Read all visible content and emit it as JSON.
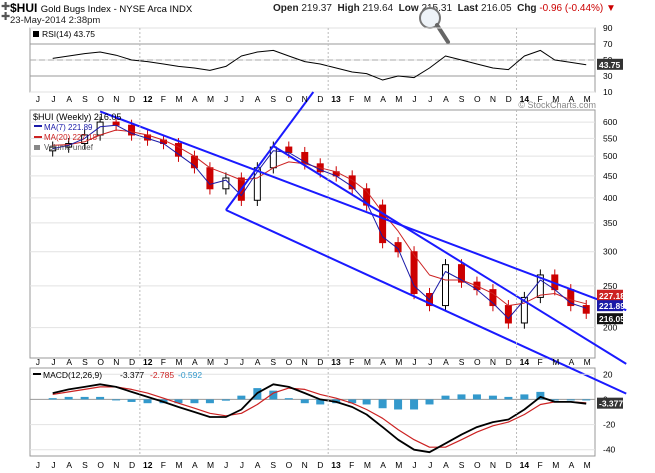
{
  "header": {
    "symbol": "$HUI",
    "name": "Gold Bugs Index - NYSE Arca INDX",
    "date": "23-May-2014 2:38pm",
    "open_label": "Open",
    "open": "219.37",
    "high_label": "High",
    "high": "219.64",
    "low_label": "Low",
    "low": "215.31",
    "last_label": "Last",
    "last": "216.05",
    "chg_label": "Chg",
    "chg": "-0.96 (-0.44%)",
    "watermark": "© StockCharts.com"
  },
  "colors": {
    "up": "#000000",
    "down": "#cc0000",
    "ma7": "#1a1aa8",
    "ma20": "#cc2222",
    "channel": "#1a1aff",
    "hist": "#3399cc",
    "grid": "#d0d0d0"
  },
  "chart_data": [
    {
      "type": "line",
      "title": "RSI(14) 43.75",
      "legend": [
        "RSI(14) 43.75"
      ],
      "ylim": [
        10,
        90
      ],
      "yticks": [
        90,
        70,
        50,
        30,
        10
      ],
      "value_label": "43.75",
      "reference_lines": [
        70,
        30
      ],
      "x_dates": [
        "2011-07",
        "2011-08",
        "2011-09",
        "2011-10",
        "2011-11",
        "2011-12",
        "2012-01",
        "2012-02",
        "2012-03",
        "2012-04",
        "2012-05",
        "2012-06",
        "2012-07",
        "2012-08",
        "2012-09",
        "2012-10",
        "2012-11",
        "2012-12",
        "2013-01",
        "2013-02",
        "2013-03",
        "2013-04",
        "2013-05",
        "2013-06",
        "2013-07",
        "2013-08",
        "2013-09",
        "2013-10",
        "2013-11",
        "2013-12",
        "2014-01",
        "2014-02",
        "2014-03",
        "2014-04",
        "2014-05"
      ],
      "values": [
        52,
        55,
        58,
        60,
        56,
        50,
        48,
        45,
        42,
        40,
        37,
        42,
        55,
        60,
        62,
        55,
        48,
        45,
        40,
        35,
        33,
        25,
        30,
        28,
        40,
        55,
        50,
        45,
        40,
        38,
        55,
        62,
        50,
        47,
        44
      ]
    },
    {
      "type": "line",
      "title": "$HUI (Weekly) 216.05",
      "legend": [
        "$HUI (Weekly) 216.05",
        "MA(7) 221.89",
        "MA(20) 227.18",
        "Volume undef"
      ],
      "log_scale": true,
      "ylim": [
        170,
        640
      ],
      "yticks": [
        600,
        550,
        500,
        450,
        400,
        350,
        300,
        250,
        200
      ],
      "last_labels": [
        "221.89",
        "227.18",
        "216.05"
      ],
      "x_dates": [
        "2011-07",
        "2011-08",
        "2011-09",
        "2011-10",
        "2011-11",
        "2011-12",
        "2012-01",
        "2012-02",
        "2012-03",
        "2012-04",
        "2012-05",
        "2012-06",
        "2012-07",
        "2012-08",
        "2012-09",
        "2012-10",
        "2012-11",
        "2012-12",
        "2013-01",
        "2013-02",
        "2013-03",
        "2013-04",
        "2013-05",
        "2013-06",
        "2013-07",
        "2013-08",
        "2013-09",
        "2013-10",
        "2013-11",
        "2013-12",
        "2014-01",
        "2014-02",
        "2014-03",
        "2014-04",
        "2014-05"
      ],
      "series": [
        {
          "name": "$HUI (Weekly)",
          "values": [
            525,
            535,
            560,
            600,
            590,
            560,
            545,
            535,
            500,
            470,
            420,
            445,
            395,
            470,
            525,
            510,
            480,
            460,
            450,
            420,
            385,
            315,
            300,
            240,
            225,
            280,
            255,
            245,
            225,
            205,
            235,
            265,
            245,
            225,
            216
          ]
        },
        {
          "name": "MA(7)",
          "values": [
            520,
            530,
            550,
            585,
            590,
            565,
            550,
            535,
            505,
            475,
            430,
            440,
            405,
            460,
            515,
            510,
            485,
            465,
            450,
            425,
            390,
            325,
            305,
            250,
            232,
            270,
            258,
            245,
            228,
            210,
            232,
            258,
            245,
            228,
            221.89
          ]
        },
        {
          "name": "MA(20)",
          "values": [
            530,
            532,
            540,
            560,
            575,
            570,
            560,
            545,
            525,
            500,
            470,
            455,
            440,
            445,
            470,
            485,
            480,
            470,
            460,
            440,
            415,
            370,
            335,
            295,
            265,
            258,
            258,
            250,
            240,
            225,
            228,
            238,
            240,
            232,
            227.18
          ]
        }
      ],
      "channel_lines": [
        {
          "from": [
            "2011-10",
            635
          ],
          "to": [
            "2014-05",
            238
          ]
        },
        {
          "from": [
            "2012-06",
            375
          ],
          "to": [
            "2014-05",
            155
          ]
        },
        {
          "from": [
            "2012-09",
            528
          ],
          "to": [
            "2014-05",
            188
          ]
        },
        {
          "from": [
            "2012-06",
            375
          ],
          "to": [
            "2012-09",
            528
          ]
        }
      ]
    },
    {
      "type": "line",
      "title": "MACD(12,26,9) -3.377, -2.785, -0.592",
      "legend_label": "MACD(12,26,9)",
      "legend_values": [
        "-3.377",
        "-2.785",
        "-0.592"
      ],
      "ylim": [
        -45,
        25
      ],
      "yticks": [
        20,
        0,
        -20,
        -40
      ],
      "value_label": "-3.377",
      "x_dates": [
        "2011-07",
        "2011-08",
        "2011-09",
        "2011-10",
        "2011-11",
        "2011-12",
        "2012-01",
        "2012-02",
        "2012-03",
        "2012-04",
        "2012-05",
        "2012-06",
        "2012-07",
        "2012-08",
        "2012-09",
        "2012-10",
        "2012-11",
        "2012-12",
        "2013-01",
        "2013-02",
        "2013-03",
        "2013-04",
        "2013-05",
        "2013-06",
        "2013-07",
        "2013-08",
        "2013-09",
        "2013-10",
        "2013-11",
        "2013-12",
        "2014-01",
        "2014-02",
        "2014-03",
        "2014-04",
        "2014-05"
      ],
      "series": [
        {
          "name": "MACD",
          "values": [
            5,
            8,
            10,
            12,
            10,
            6,
            2,
            -2,
            -6,
            -10,
            -14,
            -14,
            -8,
            5,
            12,
            10,
            5,
            0,
            -2,
            -6,
            -12,
            -22,
            -32,
            -40,
            -42,
            -35,
            -28,
            -22,
            -18,
            -16,
            -8,
            2,
            -2,
            -2,
            -3.377
          ]
        },
        {
          "name": "Signal",
          "values": [
            4,
            6,
            8,
            10,
            10,
            8,
            5,
            1,
            -3,
            -7,
            -11,
            -13,
            -11,
            -4,
            5,
            9,
            8,
            4,
            1,
            -3,
            -8,
            -15,
            -24,
            -32,
            -38,
            -38,
            -32,
            -26,
            -21,
            -18,
            -12,
            -4,
            -2,
            -2,
            -2.785
          ]
        },
        {
          "name": "Histogram",
          "values": [
            1,
            2,
            2,
            2,
            0,
            -2,
            -3,
            -3,
            -3,
            -3,
            -3,
            -1,
            3,
            9,
            7,
            1,
            -3,
            -4,
            -3,
            -3,
            -4,
            -7,
            -8,
            -8,
            -4,
            3,
            4,
            4,
            3,
            2,
            4,
            6,
            0,
            0,
            -0.592
          ]
        }
      ]
    }
  ],
  "x_axis": {
    "labels": [
      "J",
      "J",
      "A",
      "S",
      "O",
      "N",
      "D",
      "12",
      "F",
      "M",
      "A",
      "M",
      "J",
      "J",
      "A",
      "S",
      "O",
      "N",
      "D",
      "13",
      "F",
      "M",
      "A",
      "M",
      "J",
      "J",
      "A",
      "S",
      "O",
      "N",
      "D",
      "14",
      "F",
      "M",
      "A",
      "M"
    ],
    "start": "2011-06"
  }
}
